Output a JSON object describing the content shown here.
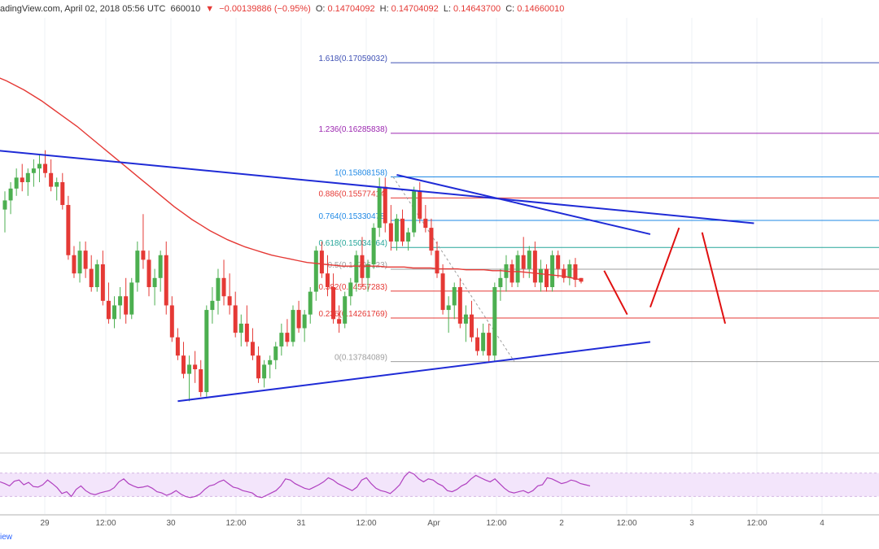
{
  "header": {
    "source": "adingView.com, April 02, 2018 05:56 UTC",
    "price_prefix": "660010",
    "change_arrow": "▼",
    "change": "−0.00139886 (−0.95%)",
    "open_label": "O:",
    "open": "0.14704092",
    "high_label": "H:",
    "high": "0.14704092",
    "low_label": "L:",
    "low": "0.14643700",
    "close_label": "C:",
    "close": "0.14660010"
  },
  "footer_text": "iew",
  "colors": {
    "up": "#4caf50",
    "down": "#e53935",
    "ma": "#e53935",
    "trend": "#1f2bd6",
    "projection": "#e01010",
    "rsi_fill": "#f3e5fb",
    "rsi_line": "#b040c0",
    "grid": "#eef0f4"
  },
  "x_axis_labels": [
    "29",
    "12:00",
    "30",
    "12:00",
    "31",
    "12:00",
    "Apr",
    "12:00",
    "2",
    "12:00",
    "3",
    "12:00",
    "4"
  ],
  "chart_data": {
    "type": "candlestick",
    "title": "",
    "xlabel": "",
    "ylabel": "",
    "ylim": [
      0.128,
      0.1755
    ],
    "fib_levels": [
      {
        "label": "0(0.13784089)",
        "value": 0.13784089,
        "color": "#9e9e9e"
      },
      {
        "label": "0.236(0.14261769)",
        "value": 0.14261769,
        "color": "#e53935"
      },
      {
        "label": "0.382(0.14557283)",
        "value": 0.14557283,
        "color": "#e53935"
      },
      {
        "label": "0.5(0.14796123)",
        "value": 0.14796123,
        "color": "#9e9e9e"
      },
      {
        "label": "0.618(0.15034964)",
        "value": 0.15034964,
        "color": "#26a69a"
      },
      {
        "label": "0.764(0.15330478)",
        "value": 0.15330478,
        "color": "#1e88e5"
      },
      {
        "label": "0.886(0.15577414)",
        "value": 0.15577414,
        "color": "#e53935"
      },
      {
        "label": "1(0.15808158)",
        "value": 0.15808158,
        "color": "#1e88e5"
      },
      {
        "label": "1.236(0.16285838)",
        "value": 0.16285838,
        "color": "#9c27b0"
      },
      {
        "label": "1.618(0.17059032)",
        "value": 0.17059032,
        "color": "#3f51b5"
      }
    ],
    "candles": [
      {
        "o": 0.1545,
        "h": 0.1565,
        "l": 0.152,
        "c": 0.1555
      },
      {
        "o": 0.1555,
        "h": 0.1575,
        "l": 0.154,
        "c": 0.1568
      },
      {
        "o": 0.1568,
        "h": 0.159,
        "l": 0.156,
        "c": 0.158
      },
      {
        "o": 0.158,
        "h": 0.1595,
        "l": 0.1565,
        "c": 0.1575
      },
      {
        "o": 0.1575,
        "h": 0.159,
        "l": 0.156,
        "c": 0.1585
      },
      {
        "o": 0.1585,
        "h": 0.16,
        "l": 0.157,
        "c": 0.159
      },
      {
        "o": 0.159,
        "h": 0.1605,
        "l": 0.1575,
        "c": 0.1595
      },
      {
        "o": 0.1595,
        "h": 0.161,
        "l": 0.158,
        "c": 0.1585
      },
      {
        "o": 0.1585,
        "h": 0.16,
        "l": 0.1565,
        "c": 0.157
      },
      {
        "o": 0.157,
        "h": 0.158,
        "l": 0.1555,
        "c": 0.1575
      },
      {
        "o": 0.1575,
        "h": 0.1585,
        "l": 0.1545,
        "c": 0.155
      },
      {
        "o": 0.155,
        "h": 0.156,
        "l": 0.149,
        "c": 0.1495
      },
      {
        "o": 0.1495,
        "h": 0.1505,
        "l": 0.147,
        "c": 0.1475
      },
      {
        "o": 0.1475,
        "h": 0.151,
        "l": 0.1465,
        "c": 0.15
      },
      {
        "o": 0.15,
        "h": 0.151,
        "l": 0.147,
        "c": 0.148
      },
      {
        "o": 0.148,
        "h": 0.1495,
        "l": 0.1455,
        "c": 0.146
      },
      {
        "o": 0.146,
        "h": 0.149,
        "l": 0.1455,
        "c": 0.1485
      },
      {
        "o": 0.1485,
        "h": 0.15,
        "l": 0.144,
        "c": 0.1445
      },
      {
        "o": 0.1445,
        "h": 0.1465,
        "l": 0.142,
        "c": 0.1425
      },
      {
        "o": 0.1425,
        "h": 0.145,
        "l": 0.1415,
        "c": 0.144
      },
      {
        "o": 0.144,
        "h": 0.146,
        "l": 0.1425,
        "c": 0.145
      },
      {
        "o": 0.145,
        "h": 0.147,
        "l": 0.142,
        "c": 0.143
      },
      {
        "o": 0.143,
        "h": 0.147,
        "l": 0.1425,
        "c": 0.1465
      },
      {
        "o": 0.1465,
        "h": 0.151,
        "l": 0.1455,
        "c": 0.15
      },
      {
        "o": 0.15,
        "h": 0.154,
        "l": 0.148,
        "c": 0.149
      },
      {
        "o": 0.149,
        "h": 0.15,
        "l": 0.145,
        "c": 0.146
      },
      {
        "o": 0.146,
        "h": 0.148,
        "l": 0.144,
        "c": 0.147
      },
      {
        "o": 0.147,
        "h": 0.15,
        "l": 0.1455,
        "c": 0.1495
      },
      {
        "o": 0.1495,
        "h": 0.151,
        "l": 0.143,
        "c": 0.144
      },
      {
        "o": 0.144,
        "h": 0.145,
        "l": 0.14,
        "c": 0.1405
      },
      {
        "o": 0.1405,
        "h": 0.1415,
        "l": 0.138,
        "c": 0.1385
      },
      {
        "o": 0.1385,
        "h": 0.14,
        "l": 0.136,
        "c": 0.1365
      },
      {
        "o": 0.1365,
        "h": 0.1385,
        "l": 0.1335,
        "c": 0.1375
      },
      {
        "o": 0.1375,
        "h": 0.139,
        "l": 0.1355,
        "c": 0.137
      },
      {
        "o": 0.137,
        "h": 0.138,
        "l": 0.134,
        "c": 0.1345
      },
      {
        "o": 0.1345,
        "h": 0.144,
        "l": 0.134,
        "c": 0.1435
      },
      {
        "o": 0.1435,
        "h": 0.146,
        "l": 0.142,
        "c": 0.1445
      },
      {
        "o": 0.1445,
        "h": 0.148,
        "l": 0.143,
        "c": 0.147
      },
      {
        "o": 0.147,
        "h": 0.149,
        "l": 0.144,
        "c": 0.145
      },
      {
        "o": 0.145,
        "h": 0.1475,
        "l": 0.143,
        "c": 0.144
      },
      {
        "o": 0.144,
        "h": 0.1455,
        "l": 0.1405,
        "c": 0.141
      },
      {
        "o": 0.141,
        "h": 0.143,
        "l": 0.1395,
        "c": 0.142
      },
      {
        "o": 0.142,
        "h": 0.144,
        "l": 0.1395,
        "c": 0.14
      },
      {
        "o": 0.14,
        "h": 0.1415,
        "l": 0.138,
        "c": 0.1385
      },
      {
        "o": 0.1385,
        "h": 0.1395,
        "l": 0.1355,
        "c": 0.136
      },
      {
        "o": 0.136,
        "h": 0.138,
        "l": 0.135,
        "c": 0.1375
      },
      {
        "o": 0.1375,
        "h": 0.1385,
        "l": 0.136,
        "c": 0.138
      },
      {
        "o": 0.138,
        "h": 0.14,
        "l": 0.137,
        "c": 0.1395
      },
      {
        "o": 0.1395,
        "h": 0.142,
        "l": 0.1385,
        "c": 0.141
      },
      {
        "o": 0.141,
        "h": 0.1425,
        "l": 0.1395,
        "c": 0.14
      },
      {
        "o": 0.14,
        "h": 0.144,
        "l": 0.1395,
        "c": 0.1435
      },
      {
        "o": 0.1435,
        "h": 0.1445,
        "l": 0.141,
        "c": 0.1415
      },
      {
        "o": 0.1415,
        "h": 0.1435,
        "l": 0.14,
        "c": 0.143
      },
      {
        "o": 0.143,
        "h": 0.146,
        "l": 0.142,
        "c": 0.1455
      },
      {
        "o": 0.1455,
        "h": 0.1505,
        "l": 0.1445,
        "c": 0.15
      },
      {
        "o": 0.15,
        "h": 0.151,
        "l": 0.147,
        "c": 0.1475
      },
      {
        "o": 0.1475,
        "h": 0.1495,
        "l": 0.145,
        "c": 0.146
      },
      {
        "o": 0.146,
        "h": 0.1475,
        "l": 0.142,
        "c": 0.1425
      },
      {
        "o": 0.1425,
        "h": 0.144,
        "l": 0.141,
        "c": 0.142
      },
      {
        "o": 0.142,
        "h": 0.1455,
        "l": 0.1415,
        "c": 0.145
      },
      {
        "o": 0.145,
        "h": 0.147,
        "l": 0.144,
        "c": 0.1465
      },
      {
        "o": 0.1465,
        "h": 0.15,
        "l": 0.1455,
        "c": 0.1495
      },
      {
        "o": 0.1495,
        "h": 0.1515,
        "l": 0.146,
        "c": 0.147
      },
      {
        "o": 0.147,
        "h": 0.149,
        "l": 0.1455,
        "c": 0.1485
      },
      {
        "o": 0.1485,
        "h": 0.153,
        "l": 0.148,
        "c": 0.1525
      },
      {
        "o": 0.1525,
        "h": 0.158,
        "l": 0.1515,
        "c": 0.157
      },
      {
        "o": 0.157,
        "h": 0.158,
        "l": 0.152,
        "c": 0.153
      },
      {
        "o": 0.153,
        "h": 0.155,
        "l": 0.15,
        "c": 0.151
      },
      {
        "o": 0.151,
        "h": 0.154,
        "l": 0.15,
        "c": 0.1535
      },
      {
        "o": 0.1535,
        "h": 0.1545,
        "l": 0.1505,
        "c": 0.151
      },
      {
        "o": 0.151,
        "h": 0.1525,
        "l": 0.15,
        "c": 0.152
      },
      {
        "o": 0.152,
        "h": 0.157,
        "l": 0.1515,
        "c": 0.1565
      },
      {
        "o": 0.1565,
        "h": 0.1575,
        "l": 0.153,
        "c": 0.1535
      },
      {
        "o": 0.1535,
        "h": 0.155,
        "l": 0.152,
        "c": 0.1525
      },
      {
        "o": 0.1525,
        "h": 0.1535,
        "l": 0.1495,
        "c": 0.15
      },
      {
        "o": 0.15,
        "h": 0.151,
        "l": 0.147,
        "c": 0.1475
      },
      {
        "o": 0.1475,
        "h": 0.1485,
        "l": 0.143,
        "c": 0.1435
      },
      {
        "o": 0.1435,
        "h": 0.145,
        "l": 0.141,
        "c": 0.144
      },
      {
        "o": 0.144,
        "h": 0.1465,
        "l": 0.1425,
        "c": 0.146
      },
      {
        "o": 0.146,
        "h": 0.147,
        "l": 0.1415,
        "c": 0.142
      },
      {
        "o": 0.142,
        "h": 0.144,
        "l": 0.14,
        "c": 0.143
      },
      {
        "o": 0.143,
        "h": 0.1445,
        "l": 0.14,
        "c": 0.1405
      },
      {
        "o": 0.1405,
        "h": 0.1415,
        "l": 0.1385,
        "c": 0.139
      },
      {
        "o": 0.139,
        "h": 0.142,
        "l": 0.1385,
        "c": 0.141
      },
      {
        "o": 0.141,
        "h": 0.142,
        "l": 0.1378,
        "c": 0.1385
      },
      {
        "o": 0.1385,
        "h": 0.1465,
        "l": 0.1378,
        "c": 0.146
      },
      {
        "o": 0.146,
        "h": 0.148,
        "l": 0.1445,
        "c": 0.147
      },
      {
        "o": 0.147,
        "h": 0.1495,
        "l": 0.1455,
        "c": 0.1485
      },
      {
        "o": 0.1485,
        "h": 0.149,
        "l": 0.146,
        "c": 0.1465
      },
      {
        "o": 0.1465,
        "h": 0.15,
        "l": 0.146,
        "c": 0.1495
      },
      {
        "o": 0.1495,
        "h": 0.1515,
        "l": 0.147,
        "c": 0.148
      },
      {
        "o": 0.148,
        "h": 0.1505,
        "l": 0.147,
        "c": 0.15
      },
      {
        "o": 0.15,
        "h": 0.151,
        "l": 0.146,
        "c": 0.1465
      },
      {
        "o": 0.1465,
        "h": 0.149,
        "l": 0.1455,
        "c": 0.148
      },
      {
        "o": 0.148,
        "h": 0.1485,
        "l": 0.1455,
        "c": 0.146
      },
      {
        "o": 0.146,
        "h": 0.15,
        "l": 0.1455,
        "c": 0.1495
      },
      {
        "o": 0.1495,
        "h": 0.15,
        "l": 0.147,
        "c": 0.148
      },
      {
        "o": 0.148,
        "h": 0.1485,
        "l": 0.1465,
        "c": 0.147
      },
      {
        "o": 0.147,
        "h": 0.149,
        "l": 0.1462,
        "c": 0.1485
      },
      {
        "o": 0.1485,
        "h": 0.1492,
        "l": 0.146,
        "c": 0.1468
      },
      {
        "o": 0.147,
        "h": 0.147,
        "l": 0.1464,
        "c": 0.1466
      }
    ],
    "ma": [
      0.169,
      0.1686,
      0.1681,
      0.1676,
      0.167,
      0.1664,
      0.1657,
      0.165,
      0.1643,
      0.1636,
      0.1628,
      0.162,
      0.1612,
      0.1604,
      0.1596,
      0.1588,
      0.158,
      0.1572,
      0.1564,
      0.1556,
      0.1548,
      0.1541,
      0.1534,
      0.1528,
      0.1522,
      0.1517,
      0.1512,
      0.1508,
      0.1504,
      0.1501,
      0.1498,
      0.1495,
      0.1493,
      0.1491,
      0.1489,
      0.1487,
      0.1486,
      0.1485,
      0.1484,
      0.1483,
      0.1483,
      0.1483,
      0.1483,
      0.1483,
      0.1482,
      0.1482,
      0.1482,
      0.1481,
      0.1481,
      0.1481,
      0.148,
      0.148,
      0.148,
      0.1479,
      0.1479,
      0.1479,
      0.1478,
      0.1478,
      0.1477,
      0.1477,
      0.1476,
      0.1475,
      0.1474,
      0.1473,
      0.1472,
      0.147,
      0.1468
    ],
    "trendlines": [
      {
        "x1": -10,
        "y1": 0.1615,
        "x2": 130,
        "y2": 0.153
      },
      {
        "x1": 68,
        "y1": 0.1583,
        "x2": 112,
        "y2": 0.1518
      },
      {
        "x1": 30,
        "y1": 0.1335,
        "x2": 112,
        "y2": 0.14
      }
    ],
    "projection": [
      {
        "x1": 104,
        "y1": 0.1478,
        "x2": 108,
        "y2": 0.143
      },
      {
        "x1": 112,
        "y1": 0.1438,
        "x2": 117,
        "y2": 0.1525
      },
      {
        "x1": 121,
        "y1": 0.152,
        "x2": 125,
        "y2": 0.142
      }
    ],
    "rsi": [
      55,
      52,
      48,
      56,
      58,
      50,
      54,
      47,
      46,
      50,
      58,
      52,
      45,
      35,
      38,
      30,
      42,
      48,
      40,
      35,
      33,
      36,
      38,
      40,
      45,
      55,
      60,
      52,
      48,
      45,
      46,
      48,
      44,
      38,
      36,
      32,
      35,
      40,
      34,
      30,
      28,
      30,
      34,
      42,
      48,
      50,
      55,
      58,
      52,
      46,
      44,
      40,
      38,
      36,
      30,
      28,
      32,
      36,
      40,
      48,
      60,
      58,
      52,
      48,
      44,
      42,
      46,
      50,
      55,
      62,
      58,
      52,
      48,
      44,
      40,
      46,
      58,
      62,
      52,
      44,
      40,
      38,
      35,
      42,
      50,
      64,
      72,
      68,
      60,
      55,
      60,
      58,
      52,
      48,
      40,
      38,
      42,
      48,
      52,
      60,
      66,
      62,
      58,
      55,
      60,
      52,
      44,
      38,
      36,
      38,
      40,
      36,
      40,
      48,
      50,
      62,
      60,
      56,
      52,
      54,
      58,
      56,
      52,
      50,
      48
    ]
  }
}
